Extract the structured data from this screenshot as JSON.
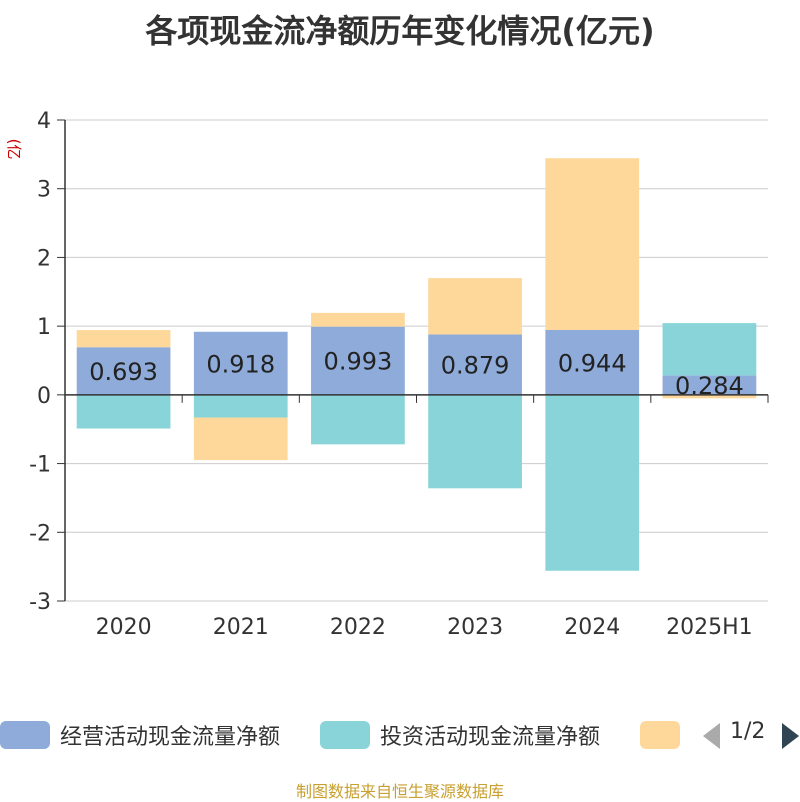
{
  "chart_data": {
    "type": "bar",
    "stacked": true,
    "title": "各项现金流净额历年变化情况(亿元)",
    "ylabel": "(亿元)",
    "xlabel": "",
    "categories": [
      "2020",
      "2021",
      "2022",
      "2023",
      "2024",
      "2025H1"
    ],
    "ylim": [
      -3,
      4
    ],
    "yticks": [
      4,
      3,
      2,
      1,
      0,
      -1,
      -2,
      -3
    ],
    "grid": true,
    "legend_position": "bottom",
    "series": [
      {
        "name": "经营活动现金流量净额",
        "color": "#8eabda",
        "values": [
          0.693,
          0.918,
          0.993,
          0.879,
          0.944,
          0.284
        ],
        "data_labels": [
          "0.693",
          "0.918",
          "0.993",
          "0.879",
          "0.944",
          "0.284"
        ]
      },
      {
        "name": "投资活动现金流量净额",
        "color": "#88d4d8",
        "values": [
          -0.49,
          -0.33,
          -0.72,
          -1.36,
          -2.56,
          0.76
        ]
      },
      {
        "name": "",
        "color": "#fed89a",
        "values": [
          0.25,
          -0.62,
          0.2,
          0.82,
          2.5,
          -0.05
        ]
      }
    ]
  },
  "legend": {
    "page": "1/2"
  },
  "source": "制图数据来自恒生聚源数据库"
}
